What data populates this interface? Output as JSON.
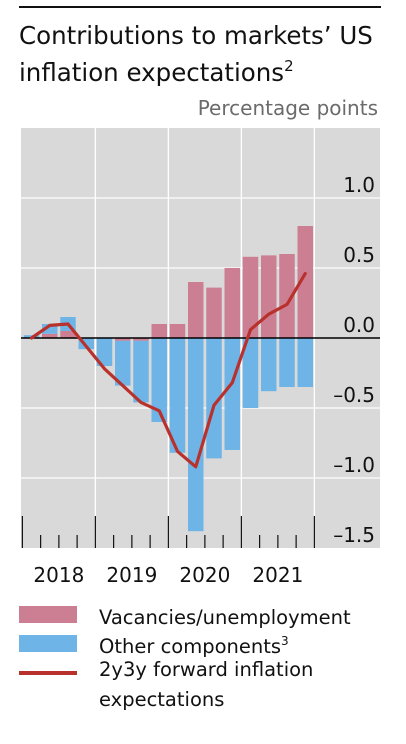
{
  "title": "Contributions to markets’ US inflation expectations",
  "title_note": "2",
  "unit_label": "Percentage points",
  "colors": {
    "vacancies": "#cc7f92",
    "other": "#6fb4e6",
    "line": "#b8312c",
    "plot_bg": "#d9d9d9",
    "grid": "#ffffff",
    "zero": "#000000"
  },
  "legend": [
    {
      "label": "Vacancies/unemployment",
      "note": "",
      "swatch": "box",
      "color_key": "vacancies"
    },
    {
      "label": "Other components",
      "note": "3",
      "swatch": "box",
      "color_key": "other"
    },
    {
      "label": "2y3y forward inflation expectations",
      "note": "",
      "swatch": "line",
      "color_key": "line"
    }
  ],
  "chart_data": {
    "type": "bar",
    "title": "Contributions to markets’ US inflation expectations",
    "ylabel": "Percentage points",
    "ylim": [
      -1.5,
      1.5
    ],
    "yticks": [
      1.0,
      0.5,
      0.0,
      -0.5,
      -1.0,
      -1.5
    ],
    "ytick_labels": [
      "1.0",
      "0.5",
      "0.0",
      "–0.5",
      "–1.0",
      "–1.5"
    ],
    "x_year_labels": [
      "2018",
      "2019",
      "2020",
      "2021"
    ],
    "categories": [
      "Q1 2018",
      "Q2 2018",
      "Q3 2018",
      "Q4 2018",
      "Q1 2019",
      "Q2 2019",
      "Q3 2019",
      "Q4 2019",
      "Q1 2020",
      "Q2 2020",
      "Q3 2020",
      "Q4 2020",
      "Q1 2021",
      "Q2 2021",
      "Q3 2021",
      "Q4 2021"
    ],
    "stacked": true,
    "series": [
      {
        "name": "Vacancies/unemployment",
        "type": "bar",
        "color_key": "vacancies",
        "values": [
          0.0,
          0.03,
          0.05,
          0.0,
          0.0,
          -0.02,
          -0.02,
          0.1,
          0.1,
          0.4,
          0.36,
          0.5,
          0.58,
          0.59,
          0.6,
          0.8
        ]
      },
      {
        "name": "Other components",
        "type": "bar",
        "color_key": "other",
        "values": [
          0.02,
          0.07,
          0.1,
          -0.08,
          -0.2,
          -0.32,
          -0.44,
          -0.6,
          -0.82,
          -1.38,
          -0.86,
          -0.8,
          -0.5,
          -0.38,
          -0.35,
          -0.35
        ]
      },
      {
        "name": "2y3y forward inflation expectations",
        "type": "line",
        "color_key": "line",
        "values": [
          0.0,
          0.09,
          0.1,
          -0.06,
          -0.22,
          -0.34,
          -0.46,
          -0.52,
          -0.81,
          -0.92,
          -0.48,
          -0.32,
          0.06,
          0.17,
          0.24,
          0.46
        ]
      }
    ],
    "grid": true,
    "legend_position": "bottom"
  }
}
